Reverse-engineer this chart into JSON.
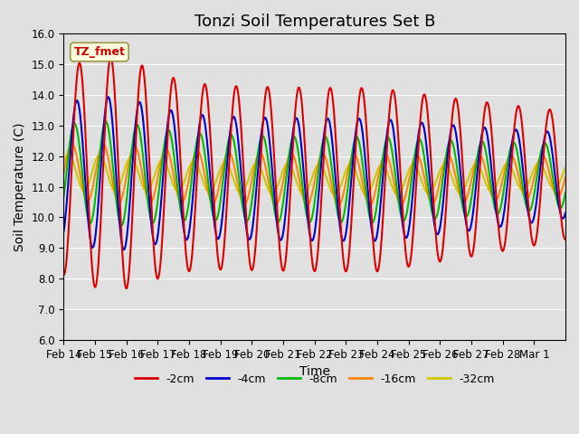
{
  "title": "Tonzi Soil Temperatures Set B",
  "xlabel": "Time",
  "ylabel": "Soil Temperature (C)",
  "ylim": [
    6.0,
    16.0
  ],
  "yticks": [
    6.0,
    7.0,
    8.0,
    9.0,
    10.0,
    11.0,
    12.0,
    13.0,
    14.0,
    15.0,
    16.0
  ],
  "series_labels": [
    "-2cm",
    "-4cm",
    "-8cm",
    "-16cm",
    "-32cm"
  ],
  "series_colors": [
    "#dd0000",
    "#0000cc",
    "#00bb00",
    "#ff8800",
    "#cccc00"
  ],
  "series_linewidths": [
    1.5,
    1.5,
    1.5,
    1.5,
    1.5
  ],
  "xtick_labels": [
    "Feb 14",
    "Feb 15",
    "Feb 16",
    "Feb 17",
    "Feb 18",
    "Feb 19",
    "Feb 20",
    "Feb 21",
    "Feb 22",
    "Feb 23",
    "Feb 24",
    "Feb 25",
    "Feb 26",
    "Feb 27",
    "Feb 28",
    "Mar 1"
  ],
  "n_days": 16,
  "points_per_day": 48,
  "annotation_text": "TZ_fmet",
  "annotation_color": "#cc0000",
  "bg_color": "#e0e0e0",
  "plot_bg_color": "#e0e0e0",
  "legend_ncol": 5,
  "title_fontsize": 13,
  "axis_fontsize": 10,
  "tick_fontsize": 8.5
}
